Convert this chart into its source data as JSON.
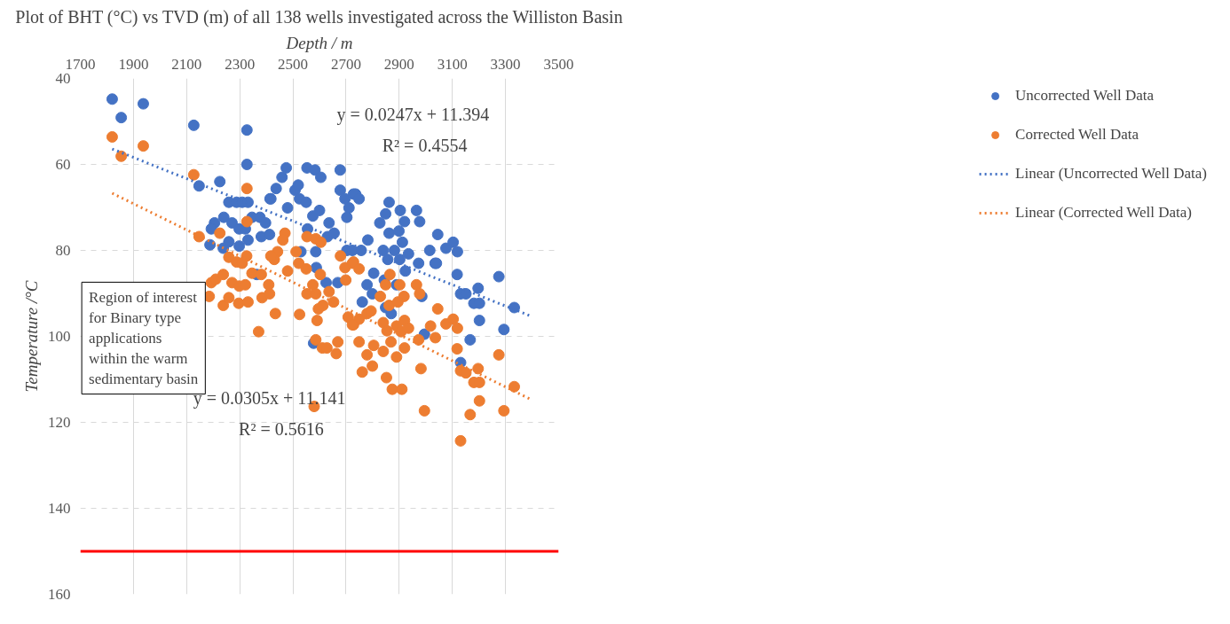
{
  "chart_data": {
    "type": "scatter",
    "title": "Plot of BHT (°C) vs TVD (m) of all 138 wells investigated across the Williston Basin",
    "xlabel": "Depth / m",
    "ylabel": "Temperature /°C",
    "xlim": [
      1700,
      3500
    ],
    "xticks": [
      1700,
      1900,
      2100,
      2300,
      2500,
      2700,
      2900,
      3100,
      3300,
      3500
    ],
    "ylim": [
      160,
      40
    ],
    "yticks": [
      40,
      60,
      80,
      100,
      120,
      140,
      160
    ],
    "grid": true,
    "legend": "right",
    "marker": "circle",
    "series": [
      {
        "name": "Uncorrected Well Data",
        "color": "#4472c4",
        "x": [
          1820,
          1854,
          1937,
          2127,
          2147,
          2225,
          2327,
          2327,
          2259,
          2288,
          2309,
          2331,
          2240,
          2205,
          2193,
          2271,
          2298,
          2321,
          2346,
          2376,
          2397,
          2414,
          2188,
          2259,
          2298,
          2331,
          2381,
          2412,
          2238,
          2364,
          2475,
          2459,
          2437,
          2417,
          2508,
          2520,
          2525,
          2480,
          2550,
          2553,
          2583,
          2605,
          2575,
          2600,
          2636,
          2678,
          2678,
          2696,
          2711,
          2728,
          2703,
          2555,
          2630,
          2655,
          2586,
          2588,
          2625,
          2669,
          2703,
          2724,
          2578,
          2530,
          2736,
          2749,
          2862,
          2849,
          2827,
          2862,
          2904,
          2920,
          2899,
          2965,
          2977,
          3045,
          2782,
          2757,
          2840,
          2882,
          2912,
          2935,
          2902,
          2857,
          3015,
          3035,
          2973,
          2804,
          2779,
          2799,
          2761,
          2844,
          2890,
          2923,
          2849,
          2870,
          2985,
          2995,
          3040,
          3076,
          3103,
          3119,
          3118,
          3131,
          3151,
          3181,
          3197,
          3202,
          3202,
          3167,
          3131,
          3275,
          3294,
          3333
        ],
        "values": [
          44.8,
          49.1,
          45.9,
          50.9,
          65,
          64,
          52,
          60,
          68.8,
          68.8,
          68.8,
          68.8,
          72.3,
          73.6,
          75,
          73.6,
          75,
          75,
          72.3,
          72.3,
          73.6,
          68,
          78.7,
          78,
          79,
          77.6,
          76.8,
          76.3,
          79.5,
          85.6,
          60.8,
          63,
          65.6,
          68,
          66,
          64.8,
          68,
          70.1,
          68.8,
          60.8,
          61.3,
          63,
          72,
          70.7,
          73.6,
          61.3,
          66,
          68,
          70.1,
          66.9,
          72.3,
          75,
          76.8,
          76,
          80.3,
          84,
          87.5,
          87.5,
          80,
          80,
          101.6,
          80.3,
          66.9,
          68,
          68.8,
          71.5,
          73.6,
          76,
          70.7,
          73.3,
          75.5,
          70.7,
          73.3,
          76.3,
          77.6,
          80,
          80,
          80,
          78.1,
          80.8,
          82.1,
          82.1,
          80,
          83,
          83,
          85.3,
          88,
          90.1,
          92,
          86.9,
          88,
          84.8,
          93.3,
          94.7,
          90.7,
          99.5,
          83,
          79.5,
          78.1,
          80.3,
          85.6,
          90.1,
          90.1,
          92.3,
          88.8,
          92.3,
          96.3,
          100.8,
          106.1,
          86.1,
          98.4,
          93.3
        ]
      },
      {
        "name": "Corrected Well Data",
        "color": "#ed7d31",
        "x": [
          1820,
          1854,
          1937,
          2127,
          2147,
          2225,
          2327,
          2327,
          2259,
          2288,
          2309,
          2326,
          2193,
          2210,
          2238,
          2271,
          2298,
          2321,
          2346,
          2381,
          2185,
          2238,
          2259,
          2296,
          2331,
          2384,
          2412,
          2371,
          2470,
          2462,
          2442,
          2430,
          2417,
          2512,
          2522,
          2480,
          2550,
          2553,
          2586,
          2605,
          2603,
          2575,
          2553,
          2586,
          2636,
          2653,
          2613,
          2596,
          2591,
          2586,
          2611,
          2628,
          2669,
          2663,
          2679,
          2696,
          2699,
          2724,
          2708,
          2728,
          2434,
          2525,
          2580,
          2409,
          2728,
          2749,
          2749,
          2724,
          2779,
          2794,
          2829,
          2849,
          2865,
          2862,
          2902,
          2918,
          2895,
          2840,
          2854,
          2869,
          2890,
          2907,
          2920,
          2935,
          2920,
          2749,
          2804,
          2779,
          2799,
          2840,
          2890,
          2761,
          2852,
          2874,
          2910,
          2965,
          2977,
          2973,
          2982,
          2995,
          3018,
          3036,
          3045,
          3076,
          3103,
          3119,
          3118,
          3131,
          3151,
          3181,
          3197,
          3202,
          3202,
          3167,
          3131,
          3275,
          3294,
          3333
        ],
        "values": [
          53.6,
          58.1,
          55.7,
          62.4,
          76.8,
          76,
          65.6,
          73.3,
          81.6,
          82.7,
          83,
          81.3,
          87.5,
          86.7,
          85.6,
          87.5,
          88.3,
          88,
          85.3,
          85.6,
          90.7,
          92.8,
          91,
          92.3,
          92,
          91,
          90.1,
          98.9,
          76,
          77.6,
          80.3,
          82.1,
          81.3,
          80.3,
          83,
          84.8,
          84.3,
          76.8,
          77.3,
          78.1,
          85.6,
          88,
          90.1,
          90.1,
          89.6,
          92,
          92.8,
          93.6,
          96.3,
          100.8,
          102.7,
          102.7,
          101.3,
          104,
          81.3,
          84,
          86.9,
          83,
          95.5,
          97.3,
          94.7,
          94.9,
          116.3,
          88,
          82.7,
          84.3,
          96,
          97.3,
          94.7,
          94.1,
          90.7,
          88,
          85.6,
          92.8,
          88,
          90.7,
          92,
          96.8,
          98.7,
          101.3,
          97.6,
          98.9,
          96.3,
          98.1,
          102.7,
          101.3,
          102.1,
          104.3,
          106.9,
          103.5,
          104.8,
          108.3,
          109.6,
          112.3,
          112.3,
          88,
          90.1,
          100.8,
          107.5,
          117.3,
          97.6,
          100.3,
          93.6,
          97.1,
          96,
          98.1,
          102.9,
          108,
          108.5,
          110.7,
          107.5,
          110.7,
          115,
          118.2,
          124.3,
          104.3,
          117.3,
          111.7
        ]
      },
      {
        "name": "Linear (Uncorrected Well Data)",
        "color": "#4472c4",
        "type": "line",
        "marker": "none",
        "line_style": "dotted",
        "x": [
          1820,
          3400
        ],
        "values": [
          56.4,
          95.4
        ]
      },
      {
        "name": "Linear (Corrected Well Data)",
        "color": "#ed7d31",
        "type": "line",
        "marker": "none",
        "line_style": "dotted",
        "x": [
          1820,
          3400
        ],
        "values": [
          66.7,
          114.8
        ]
      }
    ],
    "ref_lines": [
      {
        "axis": "y",
        "value": 150,
        "color": "#ff0000"
      }
    ],
    "annotations": [
      "y = 0.0247x  + 11.394",
      "R² = 0.4554",
      "y = 0.0305x  + 11.141",
      "R² = 0.5616",
      "Region of interest\nfor Binary type\napplications\nwithin the warm\nsedimentary basin"
    ]
  }
}
